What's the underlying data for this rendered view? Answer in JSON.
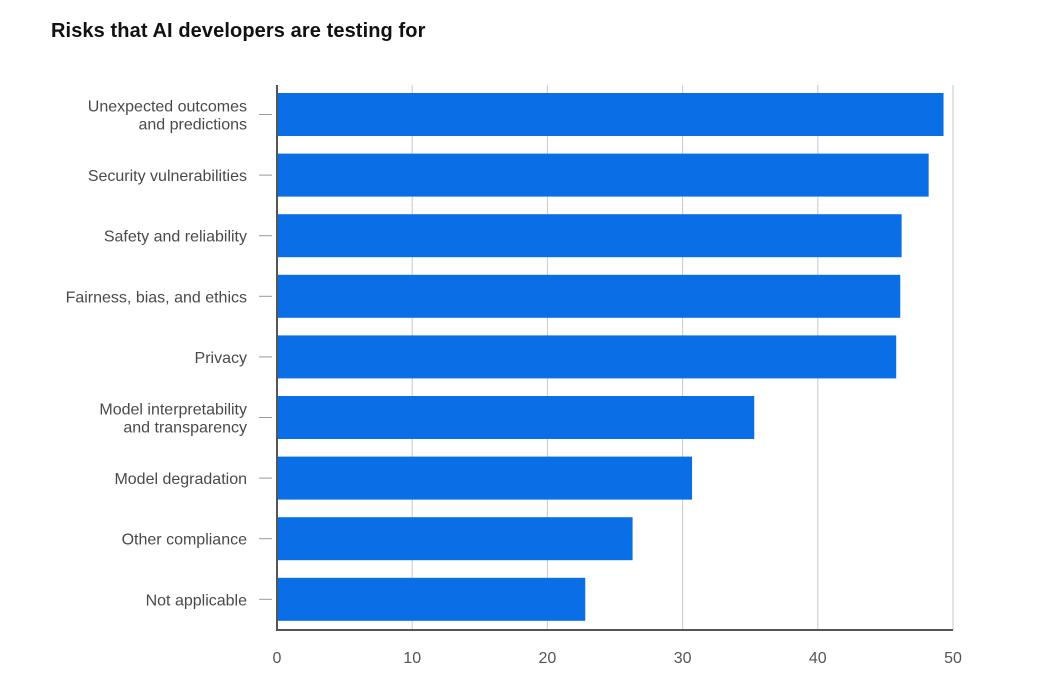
{
  "chart_data": {
    "type": "bar",
    "orientation": "horizontal",
    "title": "Risks that AI developers are testing for",
    "xlabel": "",
    "ylabel": "",
    "categories": [
      [
        "Unexpected outcomes",
        "and predictions"
      ],
      [
        "Security vulnerabilities"
      ],
      [
        "Safety and reliability"
      ],
      [
        "Fairness, bias, and ethics"
      ],
      [
        "Privacy"
      ],
      [
        "Model interpretability",
        "and transparency"
      ],
      [
        "Model degradation"
      ],
      [
        "Other compliance"
      ],
      [
        "Not applicable"
      ]
    ],
    "values": [
      49.3,
      48.2,
      46.2,
      46.1,
      45.8,
      35.3,
      30.7,
      26.3,
      22.8
    ],
    "xlim": [
      0,
      50
    ],
    "xticks": [
      0,
      10,
      20,
      30,
      40,
      50
    ],
    "grid": "vertical",
    "legend": "none",
    "colors": {
      "bar": "#0a6ee6",
      "grid": "#c8c8c8",
      "axis": "#555555"
    }
  }
}
